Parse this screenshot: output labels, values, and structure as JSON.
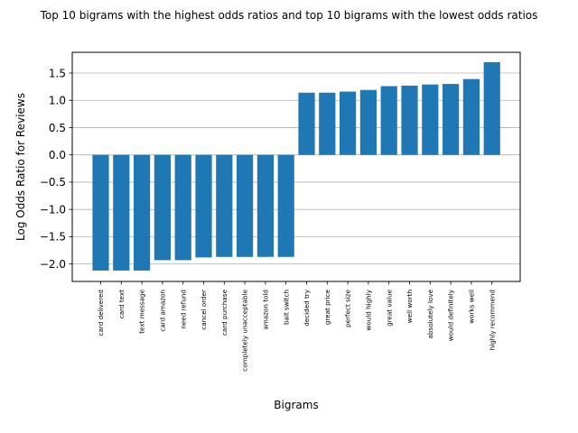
{
  "chart_data": {
    "type": "bar",
    "title": "Top 10 bigrams with the highest odds ratios and top 10 bigrams with the lowest odds ratios",
    "xlabel": "Bigrams",
    "ylabel": "Log Odds Ratio for Reviews",
    "ylim": [
      -2.32,
      1.88
    ],
    "yticks": [
      -2.0,
      -1.5,
      -1.0,
      -0.5,
      0.0,
      0.5,
      1.0,
      1.5
    ],
    "ytick_labels": [
      "−2.0",
      "−1.5",
      "−1.0",
      "−0.5",
      "0.0",
      "0.5",
      "1.0",
      "1.5"
    ],
    "grid": "horizontal",
    "bar_color": "#1f77b4",
    "categories": [
      "card delivered",
      "card text",
      "text message",
      "card amazon",
      "need refund",
      "cancel order",
      "card purchase",
      "completely unacceptable",
      "amazon told",
      "bait switch",
      "decided try",
      "great price",
      "perfect size",
      "would highly",
      "great value",
      "well worth",
      "absolutely love",
      "would definitely",
      "works well",
      "highly recommend"
    ],
    "values": [
      -2.12,
      -2.12,
      -2.12,
      -1.93,
      -1.93,
      -1.88,
      -1.87,
      -1.87,
      -1.87,
      -1.87,
      1.14,
      1.14,
      1.16,
      1.19,
      1.26,
      1.27,
      1.29,
      1.3,
      1.39,
      1.7
    ]
  }
}
